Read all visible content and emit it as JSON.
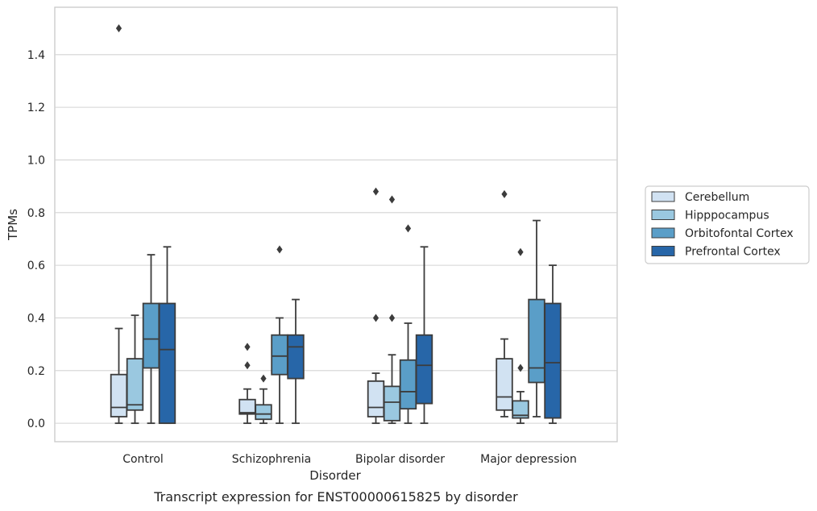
{
  "chart_data": {
    "type": "box",
    "caption": "Transcript expression for ENST00000615825 by disorder",
    "xlabel": "Disorder",
    "ylabel": "TPMs",
    "ylim": [
      -0.07,
      1.58
    ],
    "yticks": [
      0.0,
      0.2,
      0.4,
      0.6,
      0.8,
      1.0,
      1.2,
      1.4
    ],
    "ytick_labels": [
      "0.0",
      "0.2",
      "0.4",
      "0.6",
      "0.8",
      "1.0",
      "1.2",
      "1.4"
    ],
    "grid": "horizontal",
    "legend_position": "right",
    "categories": [
      "Control",
      "Schizophrenia",
      "Bipolar disorder",
      "Major depression"
    ],
    "series": [
      {
        "name": "Cerebellum",
        "color": "#d1e2f2",
        "boxes": [
          {
            "whisker_low": 0.0,
            "q1": 0.025,
            "median": 0.06,
            "q3": 0.185,
            "whisker_high": 0.36,
            "outliers": [
              1.5
            ]
          },
          {
            "whisker_low": 0.0,
            "q1": 0.035,
            "median": 0.04,
            "q3": 0.09,
            "whisker_high": 0.13,
            "outliers": [
              0.22,
              0.29
            ]
          },
          {
            "whisker_low": 0.0,
            "q1": 0.025,
            "median": 0.06,
            "q3": 0.16,
            "whisker_high": 0.19,
            "outliers": [
              0.4,
              0.88
            ]
          },
          {
            "whisker_low": 0.025,
            "q1": 0.05,
            "median": 0.1,
            "q3": 0.245,
            "whisker_high": 0.32,
            "outliers": [
              0.87
            ]
          }
        ]
      },
      {
        "name": "Hipppocampus",
        "color": "#9ac8e0",
        "boxes": [
          {
            "whisker_low": 0.0,
            "q1": 0.05,
            "median": 0.07,
            "q3": 0.245,
            "whisker_high": 0.41,
            "outliers": []
          },
          {
            "whisker_low": 0.0,
            "q1": 0.015,
            "median": 0.035,
            "q3": 0.07,
            "whisker_high": 0.13,
            "outliers": [
              0.17
            ]
          },
          {
            "whisker_low": 0.0,
            "q1": 0.01,
            "median": 0.08,
            "q3": 0.14,
            "whisker_high": 0.26,
            "outliers": [
              0.4,
              0.85
            ]
          },
          {
            "whisker_low": 0.0,
            "q1": 0.02,
            "median": 0.03,
            "q3": 0.085,
            "whisker_high": 0.12,
            "outliers": [
              0.21,
              0.65
            ]
          }
        ]
      },
      {
        "name": "Orbitofontal Cortex",
        "color": "#5a9ec8",
        "boxes": [
          {
            "whisker_low": 0.0,
            "q1": 0.21,
            "median": 0.32,
            "q3": 0.455,
            "whisker_high": 0.64,
            "outliers": []
          },
          {
            "whisker_low": 0.0,
            "q1": 0.185,
            "median": 0.255,
            "q3": 0.335,
            "whisker_high": 0.4,
            "outliers": [
              0.66
            ]
          },
          {
            "whisker_low": 0.0,
            "q1": 0.055,
            "median": 0.12,
            "q3": 0.24,
            "whisker_high": 0.38,
            "outliers": [
              0.74
            ]
          },
          {
            "whisker_low": 0.025,
            "q1": 0.155,
            "median": 0.21,
            "q3": 0.47,
            "whisker_high": 0.77,
            "outliers": []
          }
        ]
      },
      {
        "name": "Prefrontal Cortex",
        "color": "#2766a8",
        "boxes": [
          {
            "whisker_low": 0.0,
            "q1": 0.0,
            "median": 0.28,
            "q3": 0.455,
            "whisker_high": 0.67,
            "outliers": []
          },
          {
            "whisker_low": 0.0,
            "q1": 0.17,
            "median": 0.29,
            "q3": 0.335,
            "whisker_high": 0.47,
            "outliers": []
          },
          {
            "whisker_low": 0.0,
            "q1": 0.075,
            "median": 0.22,
            "q3": 0.335,
            "whisker_high": 0.67,
            "outliers": []
          },
          {
            "whisker_low": 0.0,
            "q1": 0.02,
            "median": 0.23,
            "q3": 0.455,
            "whisker_high": 0.6,
            "outliers": []
          }
        ]
      }
    ]
  }
}
